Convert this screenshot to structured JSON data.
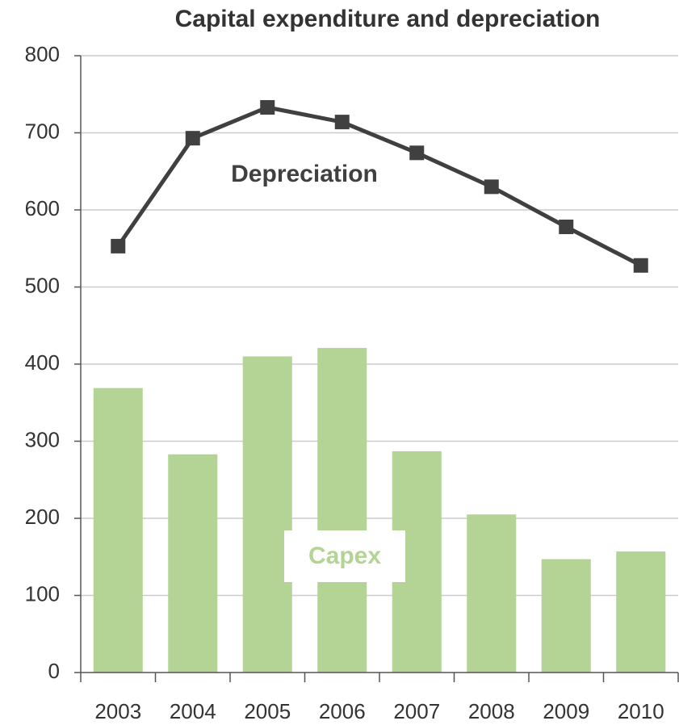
{
  "chart_data": {
    "type": "bar",
    "title": "Capital expenditure and depreciation",
    "categories": [
      "2003",
      "2004",
      "2005",
      "2006",
      "2007",
      "2008",
      "2009",
      "2010"
    ],
    "series": [
      {
        "name": "Capex",
        "type": "bar",
        "color": "#b3d494",
        "values": [
          369,
          283,
          410,
          421,
          287,
          205,
          147,
          157
        ]
      },
      {
        "name": "Depreciation",
        "type": "line",
        "color": "#404040",
        "values": [
          553,
          693,
          733,
          714,
          674,
          630,
          578,
          528
        ]
      }
    ],
    "ylim": [
      0,
      800
    ],
    "yticks": [
      0,
      100,
      200,
      300,
      400,
      500,
      600,
      700,
      800
    ],
    "grid": true
  }
}
